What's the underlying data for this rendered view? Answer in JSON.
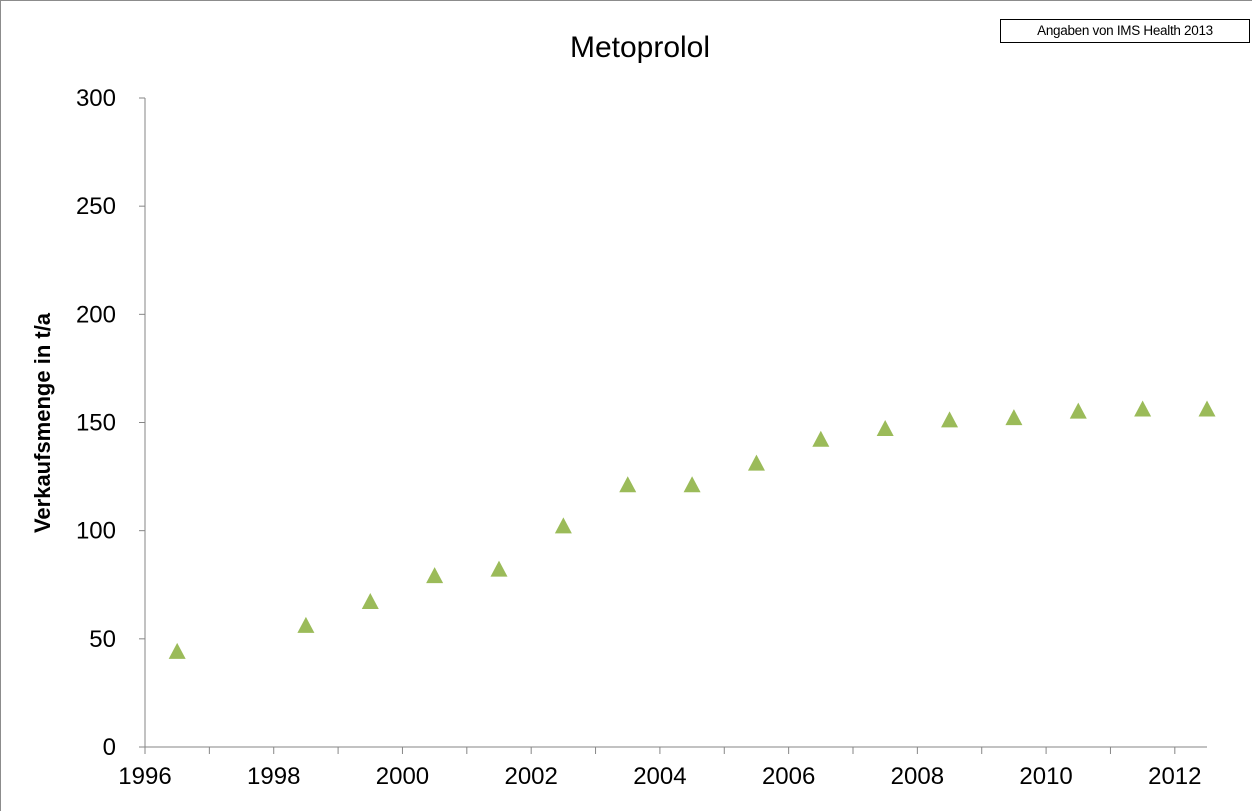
{
  "source_note": "Angaben von IMS Health 2013",
  "colors": {
    "marker": "#9bbb59",
    "axis": "#868686",
    "frame": "#8c8c8c"
  },
  "chart_data": {
    "type": "scatter",
    "title": "Metoprolol",
    "xlabel": "",
    "ylabel": "Verkaufsmenge in t/a",
    "xlim": [
      1996,
      2012.5
    ],
    "ylim": [
      0,
      300
    ],
    "x_ticks": [
      1996,
      1998,
      2000,
      2002,
      2004,
      2006,
      2008,
      2010,
      2012
    ],
    "y_ticks": [
      0,
      50,
      100,
      150,
      200,
      250,
      300
    ],
    "grid": false,
    "marker": "triangle",
    "x": [
      1996.5,
      1998.5,
      1999.5,
      2000.5,
      2001.5,
      2002.5,
      2003.5,
      2004.5,
      2005.5,
      2006.5,
      2007.5,
      2008.5,
      2009.5,
      2010.5,
      2011.5,
      2012.5
    ],
    "y": [
      44,
      56,
      67,
      79,
      82,
      102,
      121,
      121,
      131,
      142,
      147,
      151,
      152,
      155,
      156,
      156
    ]
  }
}
